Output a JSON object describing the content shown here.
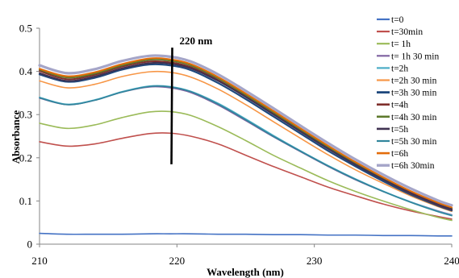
{
  "chart_data": {
    "type": "line",
    "xlabel": "Wavelength (nm)",
    "ylabel": "Absorbance",
    "xlim": [
      210,
      240
    ],
    "ylim": [
      0,
      0.5
    ],
    "x_ticks": [
      "210",
      "220",
      "230",
      "240"
    ],
    "y_ticks": [
      "0",
      "0.1",
      "0.2",
      "0.3",
      "0.4",
      "0.5"
    ],
    "grid": false,
    "legend_position": "top-right",
    "annotation": {
      "text": "220 nm",
      "x": 219.6,
      "y_from": 0.185,
      "y_to": 0.455
    },
    "x": [
      210,
      212,
      214,
      216,
      218,
      219.5,
      221,
      223,
      225,
      227,
      229,
      231,
      233,
      235,
      237,
      239,
      240
    ],
    "series": [
      {
        "name": "t=0",
        "color": "#4472C4",
        "width": 1.6,
        "values": [
          0.025,
          0.023,
          0.023,
          0.023,
          0.024,
          0.024,
          0.024,
          0.023,
          0.023,
          0.022,
          0.022,
          0.021,
          0.021,
          0.02,
          0.02,
          0.019,
          0.019
        ]
      },
      {
        "name": "t=30min",
        "color": "#C0504D",
        "width": 1.6,
        "values": [
          0.237,
          0.227,
          0.232,
          0.245,
          0.256,
          0.257,
          0.25,
          0.232,
          0.206,
          0.18,
          0.156,
          0.132,
          0.112,
          0.093,
          0.077,
          0.064,
          0.058
        ]
      },
      {
        "name": "t= 1h",
        "color": "#9BBB59",
        "width": 1.6,
        "values": [
          0.28,
          0.268,
          0.276,
          0.293,
          0.306,
          0.307,
          0.298,
          0.272,
          0.24,
          0.206,
          0.176,
          0.147,
          0.122,
          0.1,
          0.08,
          0.062,
          0.055
        ]
      },
      {
        "name": "t= 1h 30 min",
        "color": "#8064A2",
        "width": 1.6,
        "values": [
          0.338,
          0.323,
          0.333,
          0.352,
          0.364,
          0.362,
          0.351,
          0.322,
          0.286,
          0.249,
          0.214,
          0.18,
          0.149,
          0.122,
          0.098,
          0.077,
          0.068
        ]
      },
      {
        "name": "t=2h",
        "color": "#4BACC6",
        "width": 1.6,
        "values": [
          0.34,
          0.324,
          0.334,
          0.353,
          0.366,
          0.365,
          0.354,
          0.326,
          0.29,
          0.252,
          0.216,
          0.182,
          0.151,
          0.123,
          0.098,
          0.076,
          0.067
        ]
      },
      {
        "name": "t=2h 30 min",
        "color": "#F79646",
        "width": 1.6,
        "values": [
          0.378,
          0.362,
          0.37,
          0.388,
          0.399,
          0.398,
          0.387,
          0.359,
          0.323,
          0.284,
          0.245,
          0.207,
          0.172,
          0.141,
          0.112,
          0.087,
          0.076
        ]
      },
      {
        "name": "t=3h 30 min",
        "color": "#1F497D",
        "width": 2.2,
        "values": [
          0.393,
          0.376,
          0.385,
          0.404,
          0.416,
          0.414,
          0.403,
          0.373,
          0.336,
          0.296,
          0.256,
          0.216,
          0.18,
          0.146,
          0.115,
          0.089,
          0.078
        ]
      },
      {
        "name": "t=4h",
        "color": "#7F2F2B",
        "width": 2.0,
        "values": [
          0.401,
          0.382,
          0.392,
          0.411,
          0.423,
          0.421,
          0.41,
          0.38,
          0.342,
          0.302,
          0.261,
          0.221,
          0.184,
          0.15,
          0.118,
          0.091,
          0.08
        ]
      },
      {
        "name": "t=4h 30 min",
        "color": "#5E7A2C",
        "width": 2.0,
        "values": [
          0.404,
          0.386,
          0.395,
          0.414,
          0.427,
          0.425,
          0.414,
          0.384,
          0.346,
          0.306,
          0.265,
          0.225,
          0.188,
          0.153,
          0.121,
          0.094,
          0.083
        ]
      },
      {
        "name": "t=5h",
        "color": "#3F3151",
        "width": 2.0,
        "values": [
          0.396,
          0.378,
          0.388,
          0.407,
          0.419,
          0.418,
          0.407,
          0.378,
          0.341,
          0.301,
          0.261,
          0.221,
          0.184,
          0.15,
          0.119,
          0.092,
          0.081
        ]
      },
      {
        "name": "t=5h 30 min",
        "color": "#31859C",
        "width": 1.6,
        "values": [
          0.339,
          0.323,
          0.333,
          0.352,
          0.365,
          0.364,
          0.353,
          0.324,
          0.288,
          0.25,
          0.215,
          0.181,
          0.15,
          0.122,
          0.097,
          0.075,
          0.066
        ]
      },
      {
        "name": "t=6h",
        "color": "#E36C0A",
        "width": 2.0,
        "values": [
          0.406,
          0.389,
          0.398,
          0.417,
          0.43,
          0.428,
          0.417,
          0.387,
          0.349,
          0.309,
          0.268,
          0.228,
          0.19,
          0.155,
          0.123,
          0.096,
          0.085
        ]
      },
      {
        "name": "t=6h 30min",
        "color": "#A5A5C8",
        "width": 3.2,
        "values": [
          0.414,
          0.396,
          0.405,
          0.424,
          0.436,
          0.434,
          0.423,
          0.393,
          0.355,
          0.315,
          0.274,
          0.234,
          0.196,
          0.161,
          0.129,
          0.101,
          0.09
        ]
      }
    ]
  }
}
